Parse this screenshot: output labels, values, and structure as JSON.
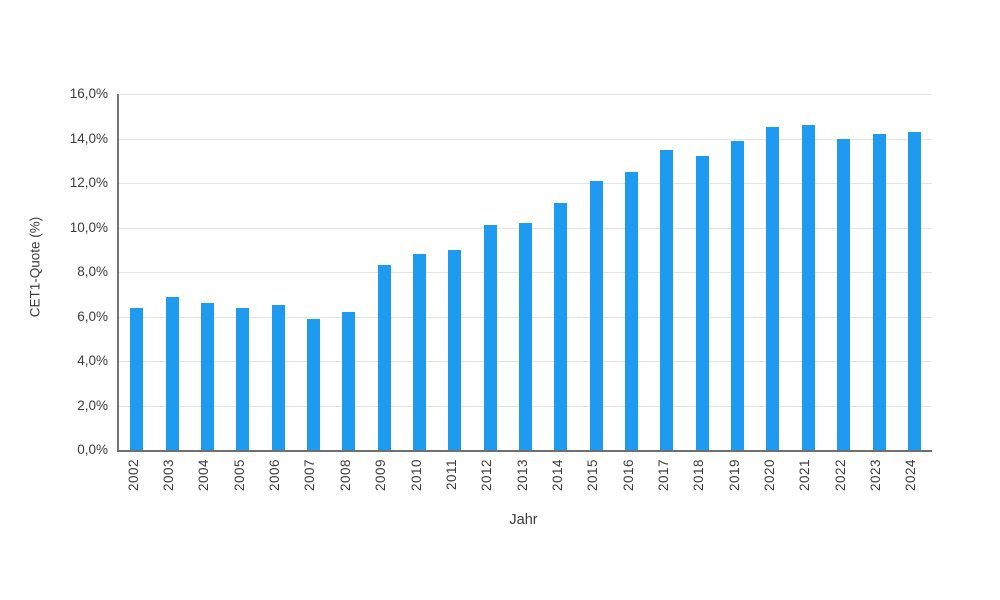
{
  "chart_data": {
    "type": "bar",
    "xlabel": "Jahr",
    "ylabel": "CET1-Quote (%)",
    "categories": [
      "2002",
      "2003",
      "2004",
      "2005",
      "2006",
      "2007",
      "2008",
      "2009",
      "2010",
      "2011",
      "2012",
      "2013",
      "2014",
      "2015",
      "2016",
      "2017",
      "2018",
      "2019",
      "2020",
      "2021",
      "2022",
      "2023",
      "2024"
    ],
    "values": [
      6.4,
      6.9,
      6.6,
      6.4,
      6.5,
      5.9,
      6.2,
      8.3,
      8.8,
      9.0,
      10.1,
      10.2,
      11.1,
      12.1,
      12.5,
      13.5,
      13.2,
      13.9,
      14.5,
      14.6,
      14.0,
      14.2,
      14.3
    ],
    "ylim": [
      0,
      16
    ],
    "ytick_values": [
      0,
      2,
      4,
      6,
      8,
      10,
      12,
      14,
      16
    ],
    "ytick_labels": [
      "0,0%",
      "2,0%",
      "4,0%",
      "6,0%",
      "8,0%",
      "10,0%",
      "12,0%",
      "14,0%",
      "16,0%"
    ],
    "grid": "horizontal",
    "legend": "none",
    "bar_color": "#1E9BF0",
    "axis_color": "#757575",
    "grid_color": "#e4e4e4",
    "text_color": "#3c3c3c"
  }
}
